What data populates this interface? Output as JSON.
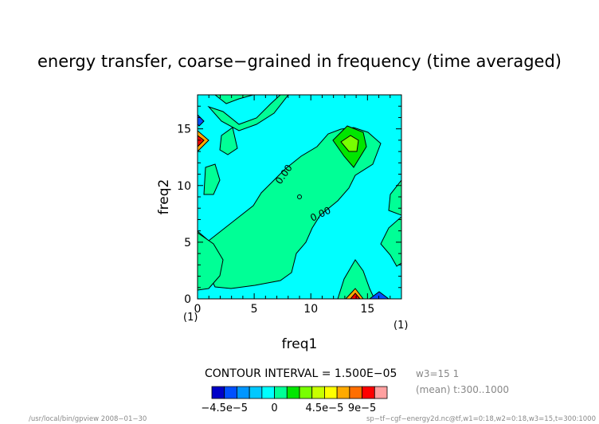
{
  "chart_data": {
    "type": "contour",
    "title": "energy transfer, coarse−grained in frequency (time averaged)",
    "xlabel": "freq1",
    "ylabel": "freq2",
    "x_unit": "(1)",
    "y_unit": "(1)",
    "xlim": [
      0,
      18
    ],
    "ylim": [
      0,
      18
    ],
    "x_ticks": [
      0,
      5,
      10,
      15
    ],
    "y_ticks": [
      0,
      5,
      10,
      15
    ],
    "contour_interval_text": "CONTOUR INTERVAL = 1.500E−05",
    "contour_labels": [
      "0.00",
      "0.00"
    ],
    "colorbar": {
      "labels": [
        "−4.5e−5",
        "0",
        "4.5e−5",
        "9e−5"
      ],
      "colors": [
        "#0000c8",
        "#0050ff",
        "#0096ff",
        "#00c8ff",
        "#00ffff",
        "#00ff96",
        "#00e600",
        "#78ff00",
        "#c8ff00",
        "#ffff00",
        "#ffaa00",
        "#ff6e00",
        "#ff0000",
        "#ffa0a0"
      ]
    },
    "features": [
      {
        "x": 14,
        "y": 14,
        "value": "max positive, approx 4.5e-5"
      },
      {
        "x": 0.3,
        "y": 14,
        "value": "min negative / positive peak pair"
      },
      {
        "x": 14,
        "y": 0.3,
        "value": "positive peak"
      },
      {
        "x": 16,
        "y": 0.3,
        "value": "negative trough"
      },
      {
        "x": 0.3,
        "y": 16,
        "value": "negative trough"
      }
    ]
  },
  "info": {
    "var_line1": "w3=15 1",
    "var_line2": "(mean) t:300..1000",
    "footer_left": "/usr/local/bin/gpview  2008−01−30",
    "footer_right": "sp−tf−cgf−energy2d.nc@tf,w1=0:18,w2=0:18,w3=15,t=300:1000"
  },
  "colors": {
    "cyan": "#00ffff",
    "green_light": "#00ff96",
    "green": "#00e600"
  }
}
